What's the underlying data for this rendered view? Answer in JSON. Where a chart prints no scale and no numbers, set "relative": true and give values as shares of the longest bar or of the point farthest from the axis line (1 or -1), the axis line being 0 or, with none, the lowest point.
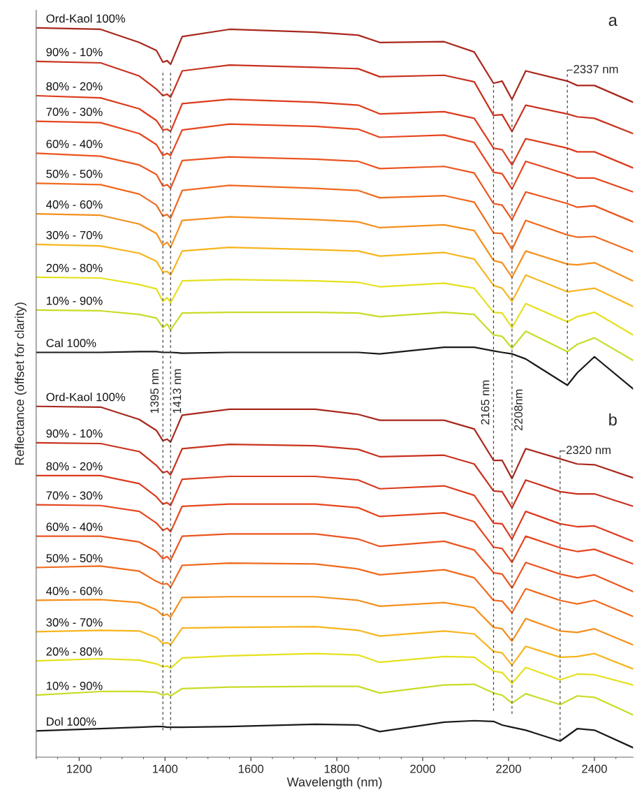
{
  "chart_data": {
    "type": "line",
    "relative": true,
    "xlabel": "Wavelength (nm)",
    "ylabel": "Reflectance (offset for clarity)",
    "xlim": [
      1100,
      2490
    ],
    "xticks": [
      1200,
      1400,
      1600,
      1800,
      2000,
      2200,
      2400
    ],
    "x": [
      1100,
      1250,
      1340,
      1380,
      1395,
      1405,
      1413,
      1440,
      1550,
      1750,
      1850,
      1900,
      2050,
      2120,
      2165,
      2185,
      2208,
      2240,
      2337,
      2360,
      2400,
      2490
    ],
    "series": [
      {
        "name": "Ord-Kaol 100%",
        "color": "#a8281e",
        "values": [
          1.0,
          0.998,
          0.98,
          0.969,
          0.953,
          0.955,
          0.95,
          0.988,
          0.998,
          0.994,
          0.99,
          0.98,
          0.981,
          0.967,
          0.924,
          0.927,
          0.902,
          0.941,
          0.927,
          0.921,
          0.921,
          0.898
        ]
      },
      {
        "name": "90% - 10%",
        "color": "#c8321e",
        "values": [
          0.954,
          0.952,
          0.934,
          0.916,
          0.907,
          0.909,
          0.905,
          0.941,
          0.949,
          0.946,
          0.944,
          0.933,
          0.935,
          0.926,
          0.88,
          0.881,
          0.858,
          0.894,
          0.882,
          0.878,
          0.876,
          0.855
        ]
      },
      {
        "name": "80% - 20%",
        "color": "#dc3c1e",
        "values": [
          0.907,
          0.904,
          0.889,
          0.873,
          0.86,
          0.861,
          0.858,
          0.896,
          0.902,
          0.898,
          0.894,
          0.882,
          0.885,
          0.876,
          0.835,
          0.833,
          0.812,
          0.848,
          0.835,
          0.83,
          0.83,
          0.808
        ]
      },
      {
        "name": "70% - 30%",
        "color": "#e6461e",
        "values": [
          0.872,
          0.87,
          0.855,
          0.84,
          0.825,
          0.828,
          0.825,
          0.86,
          0.868,
          0.865,
          0.861,
          0.85,
          0.853,
          0.843,
          0.802,
          0.8,
          0.779,
          0.817,
          0.799,
          0.794,
          0.794,
          0.775
        ]
      },
      {
        "name": "60% - 40%",
        "color": "#ec5520",
        "values": [
          0.828,
          0.824,
          0.812,
          0.799,
          0.783,
          0.785,
          0.78,
          0.818,
          0.823,
          0.82,
          0.817,
          0.807,
          0.81,
          0.801,
          0.759,
          0.757,
          0.737,
          0.775,
          0.759,
          0.754,
          0.756,
          0.734
        ]
      },
      {
        "name": "50% - 50%",
        "color": "#f06a1e",
        "values": [
          0.787,
          0.785,
          0.772,
          0.757,
          0.742,
          0.744,
          0.739,
          0.777,
          0.784,
          0.78,
          0.777,
          0.767,
          0.77,
          0.761,
          0.719,
          0.718,
          0.696,
          0.736,
          0.716,
          0.713,
          0.714,
          0.693
        ]
      },
      {
        "name": "40% - 60%",
        "color": "#f4901e",
        "values": [
          0.745,
          0.743,
          0.731,
          0.718,
          0.702,
          0.706,
          0.699,
          0.736,
          0.741,
          0.737,
          0.734,
          0.726,
          0.73,
          0.722,
          0.681,
          0.678,
          0.658,
          0.694,
          0.676,
          0.675,
          0.678,
          0.653
        ]
      },
      {
        "name": "30% - 70%",
        "color": "#f7b51e",
        "values": [
          0.703,
          0.701,
          0.691,
          0.68,
          0.665,
          0.666,
          0.661,
          0.694,
          0.699,
          0.696,
          0.694,
          0.687,
          0.692,
          0.683,
          0.647,
          0.643,
          0.625,
          0.661,
          0.638,
          0.64,
          0.643,
          0.618
        ]
      },
      {
        "name": "20% - 80%",
        "color": "#e6e01e",
        "values": [
          0.658,
          0.657,
          0.648,
          0.642,
          0.625,
          0.63,
          0.623,
          0.653,
          0.655,
          0.653,
          0.651,
          0.645,
          0.65,
          0.643,
          0.61,
          0.609,
          0.589,
          0.622,
          0.597,
          0.604,
          0.61,
          0.579
        ]
      },
      {
        "name": "10% - 90%",
        "color": "#c8dc28",
        "values": [
          0.613,
          0.612,
          0.607,
          0.602,
          0.589,
          0.594,
          0.586,
          0.609,
          0.61,
          0.61,
          0.609,
          0.604,
          0.61,
          0.607,
          0.579,
          0.577,
          0.561,
          0.584,
          0.556,
          0.566,
          0.575,
          0.544
        ]
      },
      {
        "name": "Cal 100%",
        "color": "#1a1a1a",
        "values": [
          0.555,
          0.555,
          0.556,
          0.556,
          0.555,
          0.555,
          0.555,
          0.554,
          0.555,
          0.555,
          0.555,
          0.553,
          0.562,
          0.562,
          0.557,
          0.555,
          0.553,
          0.546,
          0.51,
          0.527,
          0.549,
          0.505
        ]
      },
      {
        "name": "Ord-Kaol 100%",
        "color": "#a8281e",
        "x": [
          1100,
          1250,
          1340,
          1380,
          1395,
          1405,
          1413,
          1440,
          1550,
          1750,
          1850,
          1900,
          2050,
          2120,
          2165,
          2185,
          2208,
          2240,
          2320,
          2360,
          2400,
          2490
        ],
        "values": [
          0.481,
          0.48,
          0.463,
          0.448,
          0.434,
          0.436,
          0.432,
          0.469,
          0.477,
          0.477,
          0.47,
          0.462,
          0.462,
          0.45,
          0.407,
          0.407,
          0.382,
          0.423,
          0.409,
          0.402,
          0.401,
          0.383
        ]
      },
      {
        "name": "90% - 10%",
        "color": "#c8321e",
        "x": [
          1100,
          1250,
          1340,
          1380,
          1395,
          1405,
          1413,
          1440,
          1550,
          1750,
          1850,
          1900,
          2050,
          2120,
          2165,
          2185,
          2208,
          2240,
          2320,
          2360,
          2400,
          2490
        ],
        "values": [
          0.431,
          0.43,
          0.419,
          0.4,
          0.39,
          0.392,
          0.387,
          0.423,
          0.429,
          0.427,
          0.422,
          0.412,
          0.414,
          0.402,
          0.365,
          0.364,
          0.342,
          0.38,
          0.364,
          0.361,
          0.361,
          0.344
        ]
      },
      {
        "name": "80% - 20%",
        "color": "#dc3c1e",
        "x": [
          1100,
          1250,
          1340,
          1380,
          1395,
          1405,
          1413,
          1440,
          1550,
          1750,
          1850,
          1900,
          2050,
          2120,
          2165,
          2185,
          2208,
          2240,
          2320,
          2360,
          2400,
          2490
        ],
        "values": [
          0.386,
          0.386,
          0.375,
          0.357,
          0.347,
          0.349,
          0.345,
          0.381,
          0.385,
          0.385,
          0.38,
          0.368,
          0.372,
          0.359,
          0.321,
          0.32,
          0.299,
          0.337,
          0.32,
          0.316,
          0.317,
          0.296
        ]
      },
      {
        "name": "70% - 30%",
        "color": "#e6461e",
        "x": [
          1100,
          1250,
          1340,
          1380,
          1395,
          1405,
          1413,
          1440,
          1550,
          1750,
          1850,
          1900,
          2050,
          2120,
          2165,
          2185,
          2208,
          2240,
          2320,
          2360,
          2400,
          2490
        ],
        "values": [
          0.346,
          0.345,
          0.337,
          0.321,
          0.311,
          0.314,
          0.309,
          0.344,
          0.347,
          0.347,
          0.342,
          0.33,
          0.335,
          0.323,
          0.288,
          0.286,
          0.267,
          0.303,
          0.287,
          0.282,
          0.285,
          0.265
        ]
      },
      {
        "name": "60% - 40%",
        "color": "#ec5520",
        "x": [
          1100,
          1250,
          1340,
          1380,
          1395,
          1405,
          1413,
          1440,
          1550,
          1750,
          1850,
          1900,
          2050,
          2120,
          2165,
          2185,
          2208,
          2240,
          2320,
          2360,
          2400,
          2490
        ],
        "values": [
          0.303,
          0.303,
          0.295,
          0.282,
          0.272,
          0.275,
          0.27,
          0.303,
          0.306,
          0.306,
          0.299,
          0.289,
          0.296,
          0.284,
          0.253,
          0.251,
          0.232,
          0.267,
          0.251,
          0.246,
          0.25,
          0.227
        ]
      },
      {
        "name": "50% - 50%",
        "color": "#f06a1e",
        "x": [
          1100,
          1250,
          1340,
          1380,
          1395,
          1405,
          1413,
          1440,
          1550,
          1750,
          1850,
          1900,
          2050,
          2120,
          2165,
          2185,
          2208,
          2240,
          2320,
          2360,
          2400,
          2490
        ],
        "values": [
          0.26,
          0.262,
          0.255,
          0.241,
          0.237,
          0.238,
          0.233,
          0.263,
          0.266,
          0.265,
          0.258,
          0.25,
          0.257,
          0.246,
          0.215,
          0.214,
          0.198,
          0.231,
          0.215,
          0.21,
          0.215,
          0.193
        ]
      },
      {
        "name": "40% - 60%",
        "color": "#f4901e",
        "x": [
          1100,
          1250,
          1340,
          1380,
          1395,
          1405,
          1413,
          1440,
          1550,
          1750,
          1850,
          1900,
          2050,
          2120,
          2165,
          2185,
          2208,
          2240,
          2320,
          2360,
          2400,
          2490
        ],
        "values": [
          0.215,
          0.216,
          0.212,
          0.202,
          0.194,
          0.196,
          0.192,
          0.219,
          0.22,
          0.22,
          0.215,
          0.207,
          0.212,
          0.205,
          0.178,
          0.176,
          0.159,
          0.19,
          0.173,
          0.171,
          0.176,
          0.154
        ]
      },
      {
        "name": "30% - 70%",
        "color": "#f7b51e",
        "x": [
          1100,
          1250,
          1340,
          1380,
          1395,
          1405,
          1413,
          1440,
          1550,
          1750,
          1850,
          1900,
          2050,
          2120,
          2165,
          2185,
          2208,
          2240,
          2320,
          2360,
          2400,
          2490
        ],
        "values": [
          0.172,
          0.174,
          0.173,
          0.164,
          0.156,
          0.157,
          0.154,
          0.177,
          0.178,
          0.179,
          0.174,
          0.166,
          0.173,
          0.169,
          0.145,
          0.143,
          0.126,
          0.152,
          0.137,
          0.138,
          0.142,
          0.121
        ]
      },
      {
        "name": "20% - 80%",
        "color": "#e6e01e",
        "x": [
          1100,
          1250,
          1340,
          1380,
          1395,
          1405,
          1413,
          1440,
          1550,
          1750,
          1850,
          1900,
          2050,
          2120,
          2165,
          2185,
          2208,
          2240,
          2320,
          2360,
          2400,
          2490
        ],
        "values": [
          0.132,
          0.135,
          0.133,
          0.128,
          0.124,
          0.125,
          0.122,
          0.136,
          0.139,
          0.142,
          0.14,
          0.13,
          0.138,
          0.137,
          0.118,
          0.116,
          0.101,
          0.123,
          0.106,
          0.114,
          0.113,
          0.099
        ]
      },
      {
        "name": "10% - 90%",
        "color": "#c8dc28",
        "x": [
          1100,
          1250,
          1340,
          1380,
          1395,
          1405,
          1413,
          1440,
          1550,
          1750,
          1850,
          1900,
          2050,
          2120,
          2165,
          2185,
          2208,
          2240,
          2320,
          2360,
          2400,
          2490
        ],
        "values": [
          0.085,
          0.09,
          0.09,
          0.089,
          0.085,
          0.087,
          0.084,
          0.094,
          0.096,
          0.097,
          0.097,
          0.088,
          0.099,
          0.1,
          0.088,
          0.085,
          0.074,
          0.087,
          0.072,
          0.084,
          0.082,
          0.058
        ]
      },
      {
        "name": "Dol 100%",
        "color": "#1a1a1a",
        "x": [
          1100,
          1250,
          1340,
          1380,
          1395,
          1405,
          1413,
          1440,
          1550,
          1750,
          1850,
          1900,
          2050,
          2120,
          2165,
          2185,
          2208,
          2240,
          2320,
          2360,
          2400,
          2490
        ],
        "values": [
          0.036,
          0.039,
          0.041,
          0.042,
          0.042,
          0.041,
          0.041,
          0.041,
          0.042,
          0.045,
          0.044,
          0.035,
          0.048,
          0.05,
          0.049,
          0.044,
          0.041,
          0.037,
          0.022,
          0.039,
          0.037,
          0.013
        ]
      }
    ],
    "ref_lines": [
      {
        "axis": "x",
        "value": 1395,
        "label": "1395 nm",
        "line_style": "dashed"
      },
      {
        "axis": "x",
        "value": 1413,
        "label": "1413 nm",
        "line_style": "dashed"
      },
      {
        "axis": "x",
        "value": 2165,
        "label": "2165 nm",
        "line_style": "dashed"
      },
      {
        "axis": "x",
        "value": 2208,
        "label": "2208nm",
        "line_style": "dashed"
      },
      {
        "axis": "x",
        "value": 2337,
        "label": "2337 nm",
        "line_style": "dashed"
      },
      {
        "axis": "x",
        "value": 2320,
        "label": "2320 nm",
        "line_style": "dashed"
      }
    ],
    "annotations": [
      "a",
      "b"
    ]
  }
}
